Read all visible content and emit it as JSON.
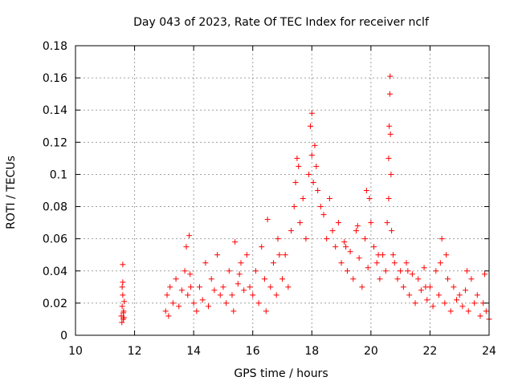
{
  "chart_data": {
    "type": "scatter",
    "title": "Day 043 of 2023, Rate Of TEC Index for receiver nclf",
    "xlabel": "GPS time / hours",
    "ylabel": "ROTI / TECUs",
    "xlim": [
      10,
      24
    ],
    "ylim": [
      0,
      0.18
    ],
    "xticks": [
      10,
      12,
      14,
      16,
      18,
      20,
      22,
      24
    ],
    "yticks": [
      0,
      0.02,
      0.04,
      0.06,
      0.08,
      0.1,
      0.12,
      0.14,
      0.16,
      0.18
    ],
    "xtick_labels": [
      "10",
      "12",
      "14",
      "16",
      "18",
      "20",
      "22",
      "24"
    ],
    "ytick_labels": [
      "0",
      "0.02",
      "0.04",
      "0.06",
      "0.08",
      "0.1",
      "0.12",
      "0.14",
      "0.16",
      "0.18"
    ],
    "grid": true,
    "marker": "+",
    "series": [
      {
        "name": "ROTI",
        "color": "#ff0000",
        "x": [
          11.55,
          11.58,
          11.6,
          11.6,
          11.62,
          11.63,
          11.65,
          11.57,
          11.6,
          11.62,
          11.64,
          11.58,
          13.05,
          13.1,
          13.15,
          13.2,
          13.3,
          13.4,
          13.5,
          13.6,
          13.7,
          13.8,
          13.9,
          13.85,
          14.0,
          14.1,
          14.2,
          14.3,
          14.4,
          14.5,
          14.6,
          14.7,
          14.8,
          14.9,
          13.75,
          13.88,
          15.0,
          15.1,
          15.2,
          15.3,
          15.4,
          15.5,
          15.6,
          15.7,
          15.8,
          15.9,
          15.35,
          15.55,
          16.0,
          16.1,
          16.2,
          16.3,
          16.4,
          16.5,
          16.6,
          16.7,
          16.8,
          16.9,
          16.45,
          16.85,
          17.0,
          17.1,
          17.2,
          17.3,
          17.4,
          17.45,
          17.5,
          17.55,
          17.6,
          17.7,
          17.8,
          17.9,
          17.95,
          18.0,
          18.0,
          18.05,
          18.1,
          18.15,
          18.2,
          18.3,
          18.4,
          18.5,
          18.6,
          18.7,
          18.8,
          18.9,
          19.0,
          19.1,
          19.2,
          19.3,
          19.4,
          19.5,
          19.6,
          19.7,
          19.8,
          19.9,
          19.85,
          19.95,
          20.0,
          20.1,
          20.2,
          20.3,
          20.4,
          20.5,
          20.55,
          20.6,
          20.6,
          20.62,
          20.64,
          20.65,
          20.66,
          20.68,
          20.7,
          20.75,
          20.8,
          20.9,
          21.0,
          21.1,
          21.2,
          21.3,
          21.4,
          21.5,
          21.6,
          21.7,
          21.8,
          21.9,
          22.0,
          22.1,
          22.2,
          22.3,
          22.4,
          22.5,
          22.6,
          22.7,
          22.8,
          22.9,
          23.0,
          23.1,
          23.2,
          23.3,
          23.4,
          23.5,
          23.6,
          23.7,
          23.8,
          23.9,
          24.0,
          22.35,
          22.55,
          23.25,
          23.85,
          21.85,
          21.25,
          20.25,
          19.55,
          19.15
        ],
        "y": [
          0.012,
          0.018,
          0.033,
          0.044,
          0.01,
          0.015,
          0.021,
          0.008,
          0.025,
          0.014,
          0.011,
          0.03,
          0.015,
          0.025,
          0.012,
          0.03,
          0.02,
          0.035,
          0.018,
          0.028,
          0.04,
          0.025,
          0.03,
          0.062,
          0.02,
          0.015,
          0.03,
          0.022,
          0.045,
          0.018,
          0.035,
          0.028,
          0.05,
          0.025,
          0.055,
          0.038,
          0.03,
          0.02,
          0.04,
          0.025,
          0.058,
          0.032,
          0.045,
          0.028,
          0.05,
          0.03,
          0.015,
          0.038,
          0.025,
          0.04,
          0.02,
          0.055,
          0.035,
          0.072,
          0.03,
          0.045,
          0.025,
          0.05,
          0.015,
          0.06,
          0.035,
          0.05,
          0.03,
          0.065,
          0.08,
          0.095,
          0.11,
          0.105,
          0.07,
          0.085,
          0.06,
          0.1,
          0.13,
          0.138,
          0.112,
          0.095,
          0.118,
          0.105,
          0.09,
          0.08,
          0.075,
          0.06,
          0.085,
          0.065,
          0.055,
          0.07,
          0.045,
          0.058,
          0.04,
          0.052,
          0.035,
          0.065,
          0.048,
          0.03,
          0.06,
          0.042,
          0.09,
          0.085,
          0.07,
          0.055,
          0.045,
          0.035,
          0.05,
          0.04,
          0.07,
          0.085,
          0.11,
          0.13,
          0.15,
          0.161,
          0.125,
          0.1,
          0.065,
          0.05,
          0.045,
          0.035,
          0.04,
          0.03,
          0.045,
          0.025,
          0.038,
          0.02,
          0.035,
          0.028,
          0.042,
          0.022,
          0.03,
          0.018,
          0.04,
          0.025,
          0.06,
          0.02,
          0.035,
          0.015,
          0.03,
          0.022,
          0.025,
          0.018,
          0.028,
          0.015,
          0.035,
          0.02,
          0.025,
          0.012,
          0.02,
          0.015,
          0.01,
          0.045,
          0.05,
          0.04,
          0.038,
          0.03,
          0.04,
          0.05,
          0.068,
          0.055
        ]
      }
    ]
  }
}
